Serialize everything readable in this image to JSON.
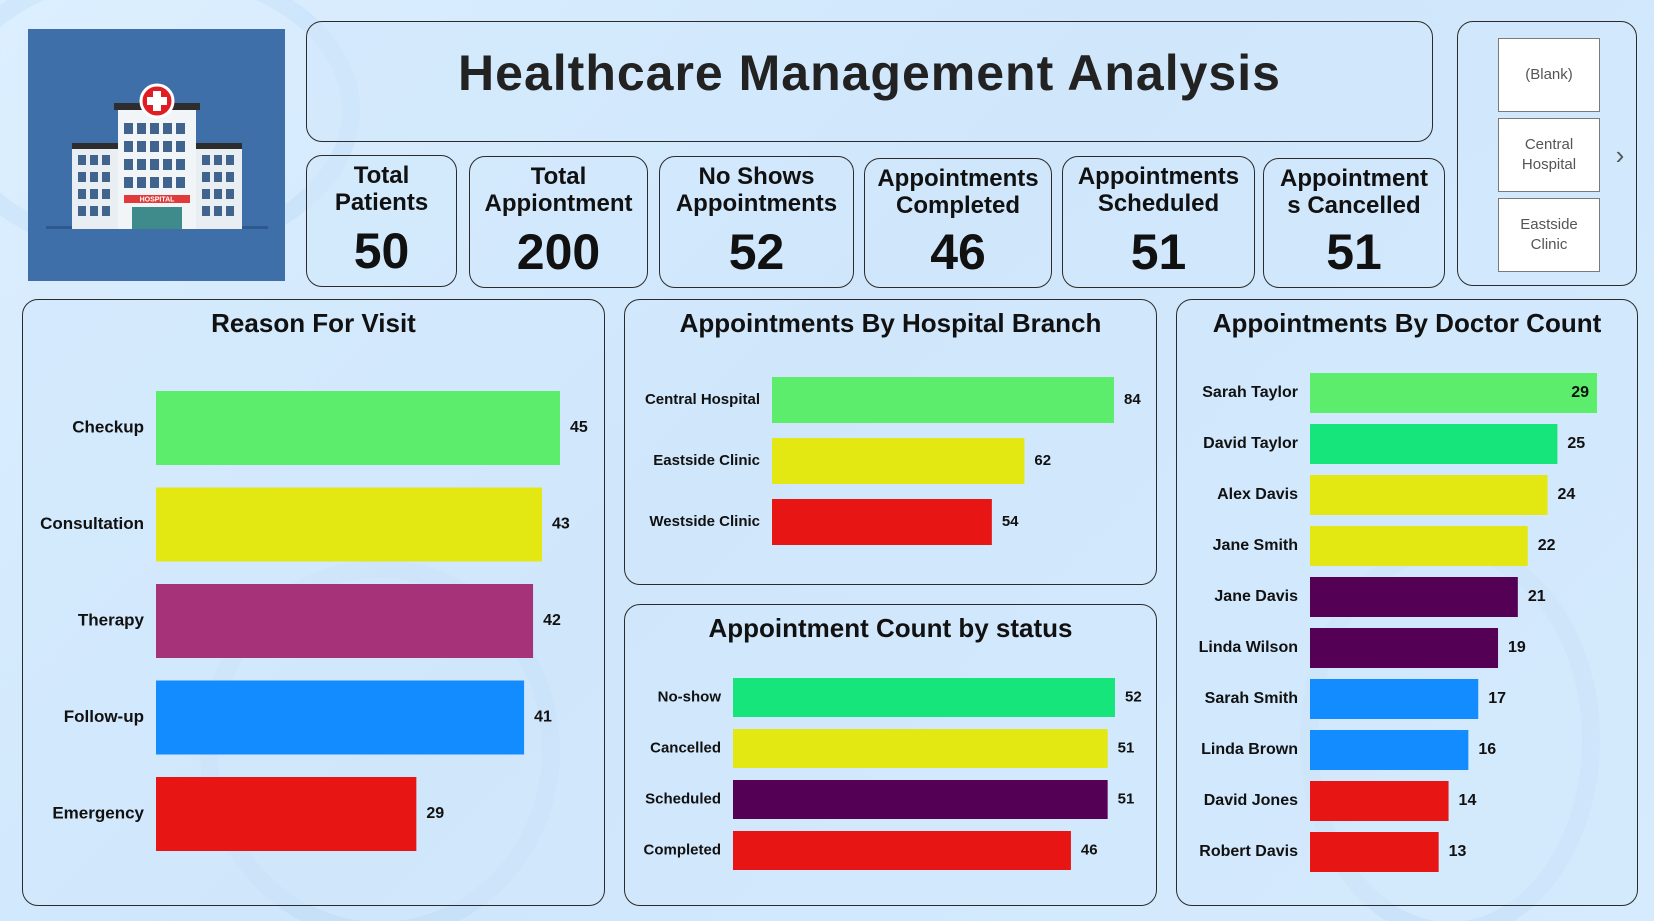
{
  "header": {
    "title": "Healthcare Management Analysis",
    "logo_icon": "hospital-building-icon",
    "logo_text": "HOSPITAL"
  },
  "kpis": [
    {
      "label": "Total Patients",
      "value": "50"
    },
    {
      "label": "Total Appiontment",
      "value": "200"
    },
    {
      "label": "No Shows Appointments",
      "value": "52"
    },
    {
      "label": "Appointments Completed",
      "value": "46"
    },
    {
      "label": "Appointments Scheduled",
      "value": "51"
    },
    {
      "label": "Appointment s Cancelled",
      "value": "51"
    }
  ],
  "slicer": {
    "items": [
      "(Blank)",
      "Central Hospital",
      "Eastside Clinic"
    ],
    "next_icon": "chevron-right-icon"
  },
  "chart_data": [
    {
      "id": "reason",
      "type": "bar",
      "orientation": "horizontal",
      "title": "Reason For Visit",
      "categories": [
        "Checkup",
        "Consultation",
        "Therapy",
        "Follow-up",
        "Emergency"
      ],
      "values": [
        45,
        43,
        42,
        41,
        29
      ],
      "colors": [
        "#5ced6c",
        "#e3e812",
        "#a6327a",
        "#128cff",
        "#e81515"
      ]
    },
    {
      "id": "branch",
      "type": "bar",
      "orientation": "horizontal",
      "title": "Appointments By Hospital Branch",
      "categories": [
        "Central Hospital",
        "Eastside Clinic",
        "Westside Clinic"
      ],
      "values": [
        84,
        62,
        54
      ],
      "colors": [
        "#5ced6c",
        "#e3e812",
        "#e81515"
      ]
    },
    {
      "id": "status",
      "type": "bar",
      "orientation": "horizontal",
      "title": "Appointment Count by status",
      "categories": [
        "No-show",
        "Cancelled",
        "Scheduled",
        "Completed"
      ],
      "values": [
        52,
        51,
        51,
        46
      ],
      "colors": [
        "#16e57c",
        "#e3e812",
        "#530055",
        "#e81515"
      ]
    },
    {
      "id": "doctor",
      "type": "bar",
      "orientation": "horizontal",
      "title": "Appointments By Doctor Count",
      "categories": [
        "Sarah Taylor",
        "David Taylor",
        "Alex Davis",
        "Jane Smith",
        "Jane Davis",
        "Linda Wilson",
        "Sarah Smith",
        "Linda Brown",
        "David Jones",
        "Robert Davis"
      ],
      "values": [
        29,
        25,
        24,
        22,
        21,
        19,
        17,
        16,
        14,
        13
      ],
      "colors": [
        "#5ced6c",
        "#16e57c",
        "#e3e812",
        "#e3e812",
        "#530055",
        "#530055",
        "#128cff",
        "#128cff",
        "#e81515",
        "#e81515"
      ]
    }
  ]
}
